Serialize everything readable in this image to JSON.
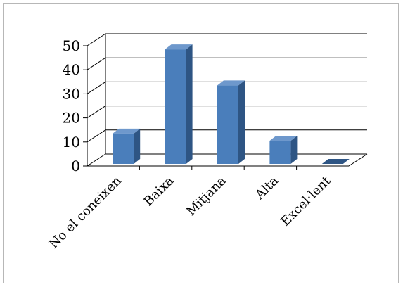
{
  "chart_data": {
    "type": "bar",
    "categories": [
      "No el coneixen",
      "Baixa",
      "Mitjana",
      "Alta",
      "Excel·lent"
    ],
    "values": [
      13.5,
      48.5,
      33.5,
      10.5,
      0
    ],
    "title": "",
    "xlabel": "",
    "ylabel": "",
    "ylim": [
      0,
      50
    ],
    "yticks": [
      0,
      10,
      20,
      30,
      40,
      50
    ],
    "grid": true,
    "legend": "none",
    "bar_color": "#4a7ebb",
    "bar_side_color": "#2e5584",
    "bar_top_color": "#6e98cc"
  }
}
